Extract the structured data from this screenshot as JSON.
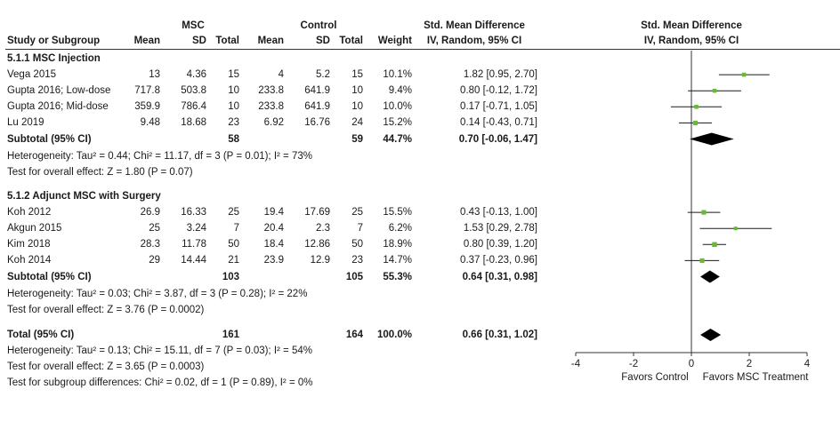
{
  "chart_data": {
    "type": "forest",
    "header": {
      "group1": "MSC",
      "group2": "Control",
      "effect_col": "Std. Mean Difference",
      "effect_sub": "IV, Random, 95% CI",
      "plot_title": "Std. Mean Difference",
      "plot_sub": "IV, Random, 95% CI",
      "cols": [
        "Study or Subgroup",
        "Mean",
        "SD",
        "Total",
        "Mean",
        "SD",
        "Total",
        "Weight"
      ]
    },
    "subgroups": [
      {
        "title": "5.1.1 MSC Injection",
        "studies": [
          {
            "name": "Vega 2015",
            "m1": "13",
            "sd1": "4.36",
            "n1": "15",
            "m2": "4",
            "sd2": "5.2",
            "n2": "15",
            "weight": "10.1%",
            "ci_text": "1.82 [0.95, 2.70]",
            "est": 1.82,
            "lo": 0.95,
            "hi": 2.7,
            "w": 10.1
          },
          {
            "name": "Gupta 2016; Low-dose",
            "m1": "717.8",
            "sd1": "503.8",
            "n1": "10",
            "m2": "233.8",
            "sd2": "641.9",
            "n2": "10",
            "weight": "9.4%",
            "ci_text": "0.80 [-0.12, 1.72]",
            "est": 0.8,
            "lo": -0.12,
            "hi": 1.72,
            "w": 9.4
          },
          {
            "name": "Gupta 2016; Mid-dose",
            "m1": "359.9",
            "sd1": "786.4",
            "n1": "10",
            "m2": "233.8",
            "sd2": "641.9",
            "n2": "10",
            "weight": "10.0%",
            "ci_text": "0.17 [-0.71, 1.05]",
            "est": 0.17,
            "lo": -0.71,
            "hi": 1.05,
            "w": 10.0
          },
          {
            "name": "Lu 2019",
            "m1": "9.48",
            "sd1": "18.68",
            "n1": "23",
            "m2": "6.92",
            "sd2": "16.76",
            "n2": "24",
            "weight": "15.2%",
            "ci_text": "0.14 [-0.43, 0.71]",
            "est": 0.14,
            "lo": -0.43,
            "hi": 0.71,
            "w": 15.2
          }
        ],
        "subtotal": {
          "label": "Subtotal (95% CI)",
          "n1": "58",
          "n2": "59",
          "weight": "44.7%",
          "ci_text": "0.70 [-0.06, 1.47]",
          "est": 0.7,
          "lo": -0.06,
          "hi": 1.47
        },
        "heterogeneity": "Heterogeneity: Tau² = 0.44; Chi² = 11.17, df = 3 (P = 0.01); I² = 73%",
        "overall_test": "Test for overall effect: Z = 1.80 (P = 0.07)"
      },
      {
        "title": "5.1.2 Adjunct MSC with Surgery",
        "studies": [
          {
            "name": "Koh 2012",
            "m1": "26.9",
            "sd1": "16.33",
            "n1": "25",
            "m2": "19.4",
            "sd2": "17.69",
            "n2": "25",
            "weight": "15.5%",
            "ci_text": "0.43 [-0.13, 1.00]",
            "est": 0.43,
            "lo": -0.13,
            "hi": 1.0,
            "w": 15.5
          },
          {
            "name": "Akgun 2015",
            "m1": "25",
            "sd1": "3.24",
            "n1": "7",
            "m2": "20.4",
            "sd2": "2.3",
            "n2": "7",
            "weight": "6.2%",
            "ci_text": "1.53 [0.29, 2.78]",
            "est": 1.53,
            "lo": 0.29,
            "hi": 2.78,
            "w": 6.2
          },
          {
            "name": "Kim 2018",
            "m1": "28.3",
            "sd1": "11.78",
            "n1": "50",
            "m2": "18.4",
            "sd2": "12.86",
            "n2": "50",
            "weight": "18.9%",
            "ci_text": "0.80 [0.39, 1.20]",
            "est": 0.8,
            "lo": 0.39,
            "hi": 1.2,
            "w": 18.9
          },
          {
            "name": "Koh 2014",
            "m1": "29",
            "sd1": "14.44",
            "n1": "21",
            "m2": "23.9",
            "sd2": "12.9",
            "n2": "23",
            "weight": "14.7%",
            "ci_text": "0.37 [-0.23, 0.96]",
            "est": 0.37,
            "lo": -0.23,
            "hi": 0.96,
            "w": 14.7
          }
        ],
        "subtotal": {
          "label": "Subtotal (95% CI)",
          "n1": "103",
          "n2": "105",
          "weight": "55.3%",
          "ci_text": "0.64 [0.31, 0.98]",
          "est": 0.64,
          "lo": 0.31,
          "hi": 0.98
        },
        "heterogeneity": "Heterogeneity: Tau² = 0.03; Chi² = 3.87, df = 3 (P = 0.28); I² = 22%",
        "overall_test": "Test for overall effect: Z = 3.76 (P = 0.0002)"
      }
    ],
    "total": {
      "label": "Total (95% CI)",
      "n1": "161",
      "n2": "164",
      "weight": "100.0%",
      "ci_text": "0.66 [0.31, 1.02]",
      "est": 0.66,
      "lo": 0.31,
      "hi": 1.02
    },
    "total_heterogeneity": "Heterogeneity: Tau² = 0.13; Chi² = 15.11, df = 7 (P = 0.03); I² = 54%",
    "total_test": "Test for overall effect: Z = 3.65 (P = 0.0003)",
    "subgroup_test": "Test for subgroup differences: Chi² = 0.02, df = 1 (P = 0.89), I² = 0%",
    "x_axis": {
      "range": [
        -4,
        4
      ],
      "ticks": [
        -4,
        -2,
        0,
        2,
        4
      ],
      "tick_labels": [
        "-4",
        "-2",
        "0",
        "2",
        "4"
      ]
    },
    "favors_left": "Favors Control",
    "favors_right": "Favors MSC Treatment",
    "colors": {
      "marker": "#66bb33",
      "line": "#1a1a1a",
      "diamond": "#000000"
    }
  }
}
